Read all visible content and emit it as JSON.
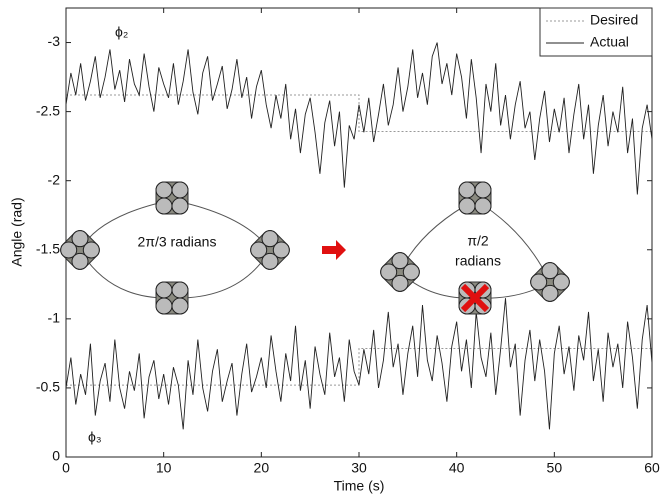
{
  "chart_data": {
    "type": "line",
    "xlabel": "Time (s)",
    "ylabel": "Angle (rad)",
    "xlim": [
      0,
      60
    ],
    "xticks": [
      0,
      10,
      20,
      30,
      40,
      50,
      60
    ],
    "ylim": [
      0,
      -3.25
    ],
    "yticks": [
      0,
      -0.5,
      -1,
      -1.5,
      -2,
      -2.5,
      -3
    ],
    "legend": {
      "position": "upper right",
      "entries": [
        "Desired",
        "Actual"
      ],
      "desired_color": "#999999",
      "actual_color": "#222222"
    },
    "annotations": [
      "2π/3 radians",
      "π/2",
      "radians"
    ],
    "x": [
      0,
      0.5,
      1,
      1.5,
      2,
      2.5,
      3,
      3.5,
      4,
      4.5,
      5,
      5.5,
      6,
      6.5,
      7,
      7.5,
      8,
      8.5,
      9,
      9.5,
      10,
      10.5,
      11,
      11.5,
      12,
      12.5,
      13,
      13.5,
      14,
      14.5,
      15,
      15.5,
      16,
      16.5,
      17,
      17.5,
      18,
      18.5,
      19,
      19.5,
      20,
      20.5,
      21,
      21.5,
      22,
      22.5,
      23,
      23.5,
      24,
      24.5,
      25,
      25.5,
      26,
      26.5,
      27,
      27.5,
      28,
      28.5,
      29,
      29.5,
      30,
      30.5,
      31,
      31.5,
      32,
      32.5,
      33,
      33.5,
      34,
      34.5,
      35,
      35.5,
      36,
      36.5,
      37,
      37.5,
      38,
      38.5,
      39,
      39.5,
      40,
      40.5,
      41,
      41.5,
      42,
      42.5,
      43,
      43.5,
      44,
      44.5,
      45,
      45.5,
      46,
      46.5,
      47,
      47.5,
      48,
      48.5,
      49,
      49.5,
      50,
      50.5,
      51,
      51.5,
      52,
      52.5,
      53,
      53.5,
      54,
      54.5,
      55,
      55.5,
      56,
      56.5,
      57,
      57.5,
      58,
      58.5,
      59,
      59.5,
      60
    ],
    "series": [
      {
        "name": "ϕ₂",
        "color": "#222222",
        "values": [
          -2.55,
          -2.78,
          -2.62,
          -2.85,
          -2.58,
          -2.72,
          -2.9,
          -2.6,
          -2.75,
          -2.95,
          -2.66,
          -2.8,
          -2.57,
          -2.88,
          -2.7,
          -2.62,
          -2.92,
          -2.68,
          -2.5,
          -2.82,
          -2.7,
          -2.6,
          -2.85,
          -2.55,
          -2.72,
          -2.95,
          -2.64,
          -2.48,
          -2.78,
          -2.9,
          -2.58,
          -2.7,
          -2.83,
          -2.52,
          -2.66,
          -2.88,
          -2.6,
          -2.75,
          -2.45,
          -2.68,
          -2.8,
          -2.55,
          -2.38,
          -2.62,
          -2.45,
          -2.7,
          -2.3,
          -2.52,
          -2.2,
          -2.48,
          -2.6,
          -2.35,
          -2.05,
          -2.42,
          -2.58,
          -2.25,
          -2.5,
          -1.95,
          -2.4,
          -2.3,
          -2.55,
          -2.35,
          -2.6,
          -2.28,
          -2.48,
          -2.7,
          -2.4,
          -2.55,
          -2.82,
          -2.5,
          -2.68,
          -2.95,
          -2.6,
          -2.78,
          -2.55,
          -2.9,
          -3.0,
          -2.7,
          -2.85,
          -2.62,
          -2.92,
          -2.75,
          -2.45,
          -2.88,
          -2.6,
          -2.2,
          -2.7,
          -2.5,
          -2.85,
          -2.4,
          -2.62,
          -2.3,
          -2.55,
          -2.72,
          -2.38,
          -2.5,
          -2.15,
          -2.45,
          -2.65,
          -2.28,
          -2.52,
          -2.35,
          -2.6,
          -2.2,
          -2.48,
          -2.7,
          -2.3,
          -2.55,
          -2.05,
          -2.4,
          -2.62,
          -2.25,
          -2.5,
          -2.35,
          -2.68,
          -2.2,
          -2.45,
          -1.9,
          -2.38,
          -2.55,
          -2.3
        ],
        "desired_x": [
          0,
          30,
          30,
          60
        ],
        "desired_values": [
          -2.62,
          -2.62,
          -2.356,
          -2.356
        ]
      },
      {
        "name": "ϕ₃",
        "color": "#222222",
        "values": [
          -0.5,
          -0.72,
          -0.38,
          -0.6,
          -0.45,
          -0.82,
          -0.3,
          -0.55,
          -0.68,
          -0.4,
          -0.85,
          -0.5,
          -0.35,
          -0.62,
          -0.48,
          -0.75,
          -0.28,
          -0.58,
          -0.7,
          -0.42,
          -0.6,
          -0.38,
          -0.65,
          -0.52,
          -0.2,
          -0.7,
          -0.45,
          -0.85,
          -0.5,
          -0.33,
          -0.62,
          -0.78,
          -0.4,
          -0.55,
          -0.68,
          -0.3,
          -0.6,
          -0.82,
          -0.47,
          -0.58,
          -0.72,
          -0.5,
          -0.88,
          -0.62,
          -0.4,
          -0.75,
          -0.55,
          -0.95,
          -0.48,
          -0.7,
          -0.35,
          -0.8,
          -0.6,
          -0.45,
          -0.9,
          -0.58,
          -0.72,
          -0.4,
          -0.85,
          -0.62,
          -0.52,
          -0.78,
          -0.6,
          -0.92,
          -0.5,
          -0.7,
          -1.05,
          -0.65,
          -0.82,
          -0.45,
          -0.75,
          -0.95,
          -0.58,
          -1.1,
          -0.7,
          -0.55,
          -0.88,
          -0.68,
          -0.4,
          -0.8,
          -0.98,
          -0.62,
          -0.85,
          -0.5,
          -1.05,
          -0.72,
          -0.58,
          -0.9,
          -0.45,
          -0.78,
          -1.15,
          -0.65,
          -0.82,
          -0.3,
          -0.7,
          -0.92,
          -0.55,
          -0.85,
          -0.62,
          -0.2,
          -0.75,
          -0.95,
          -0.6,
          -0.8,
          -0.48,
          -0.88,
          -0.7,
          -1.05,
          -0.55,
          -0.78,
          -0.4,
          -0.9,
          -0.65,
          -0.82,
          -0.5,
          -0.98,
          -0.72,
          -0.35,
          -0.85,
          -1.1,
          -0.68
        ],
        "desired_x": [
          0,
          30,
          30,
          60
        ],
        "desired_values": [
          -0.52,
          -0.52,
          -0.785,
          -0.785
        ]
      }
    ]
  }
}
